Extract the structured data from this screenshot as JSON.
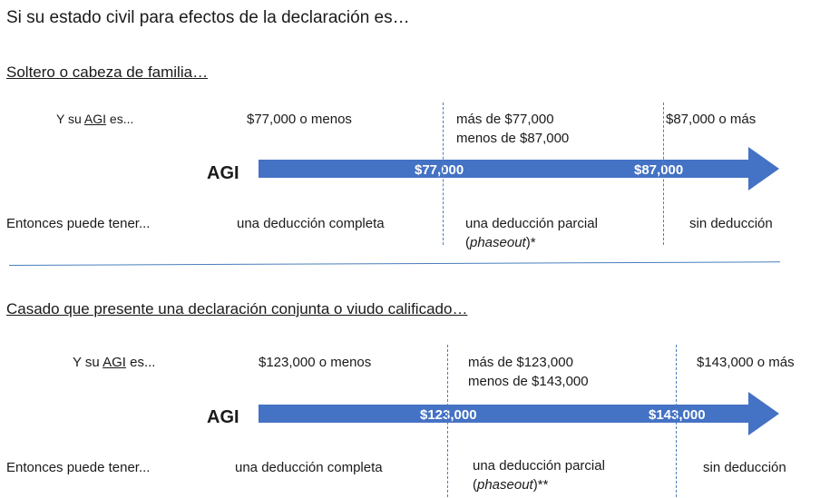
{
  "title": "Si su estado civil para efectos de la declaración es…",
  "sections": [
    {
      "heading": "Soltero o cabeza de familia…",
      "agi_prefix": "Y su ",
      "agi_word": "AGI",
      "agi_suffix": " es...",
      "range_1": "$77,000 o menos",
      "range_2_line1": "más de $77,000",
      "range_2_line2": "menos de $87,000",
      "range_3": "$87,000 o más",
      "arrow_label": "AGI",
      "threshold_low": "$77,000",
      "threshold_high": "$87,000",
      "then_label": "Entonces puede tener...",
      "deduction_1": "una deducción completa",
      "deduction_2_line1": "una deducción parcial",
      "deduction_2_open": "(",
      "deduction_2_italic": "phaseout",
      "deduction_2_close": ")*",
      "deduction_3": "sin deducción"
    },
    {
      "heading": "Casado que presente una declaración conjunta o viudo calificado…",
      "agi_prefix": "Y su ",
      "agi_word": "AGI",
      "agi_suffix": " es...",
      "range_1": "$123,000 o menos",
      "range_2_line1": "más de $123,000",
      "range_2_line2": "menos de $143,000",
      "range_3": "$143,000 o más",
      "arrow_label": "AGI",
      "threshold_low": "$123,000",
      "threshold_high": "$143,000",
      "then_label": "Entonces puede tener...",
      "deduction_1": "una deducción completa",
      "deduction_2_line1": "una deducción parcial",
      "deduction_2_open": "(",
      "deduction_2_italic": "phaseout",
      "deduction_2_close": ")**",
      "deduction_3": "sin deducción"
    }
  ],
  "colors": {
    "arrow_fill": "#4472c4",
    "divider": "#4a7ebb"
  }
}
